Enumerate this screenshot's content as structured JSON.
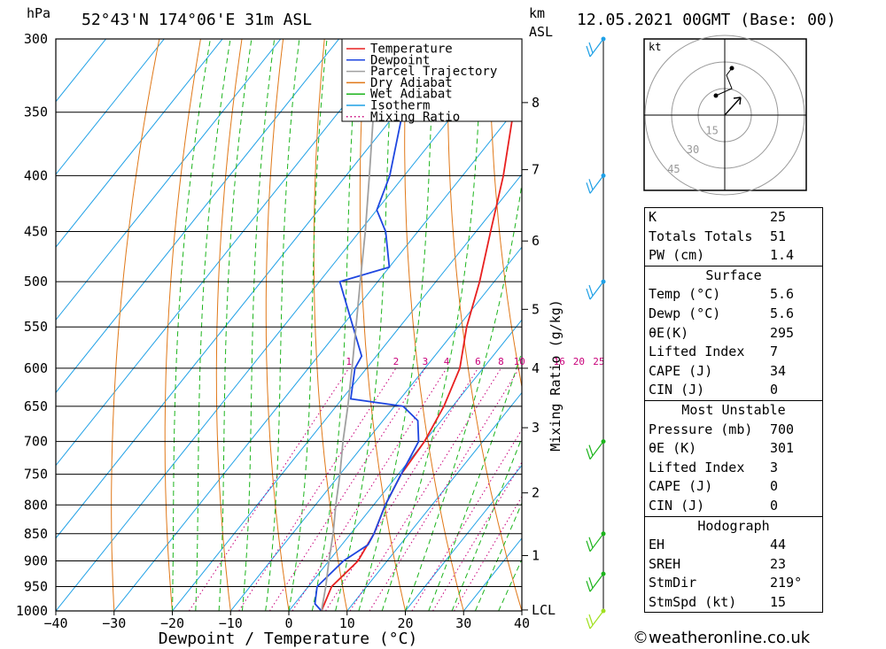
{
  "header": {
    "location": "52°43'N 174°06'E 31m ASL",
    "datetime": "12.05.2021 00GMT (Base: 00)",
    "pressure_unit": "hPa",
    "height_unit": "km",
    "height_ref": "ASL"
  },
  "chart_data": {
    "type": "line",
    "title": "",
    "xlabel": "Dewpoint / Temperature (°C)",
    "ylabel": "hPa",
    "y2label": "Mixing Ratio (g/kg)",
    "xlim": [
      -40,
      40
    ],
    "ylim": [
      1000,
      300
    ],
    "yscale": "log",
    "x_ticks": [
      "−40",
      "−30",
      "−20",
      "−10",
      "0",
      "10",
      "20",
      "30",
      "40"
    ],
    "pressure_levels": [
      300,
      350,
      400,
      450,
      500,
      550,
      600,
      650,
      700,
      750,
      800,
      850,
      900,
      950,
      1000
    ],
    "km_labels": [
      {
        "label": "8",
        "p": 343
      },
      {
        "label": "7",
        "p": 395
      },
      {
        "label": "6",
        "p": 459
      },
      {
        "label": "5",
        "p": 530
      },
      {
        "label": "4",
        "p": 600
      },
      {
        "label": "3",
        "p": 680
      },
      {
        "label": "2",
        "p": 780
      },
      {
        "label": "1",
        "p": 890
      },
      {
        "label": "LCL",
        "p": 998
      }
    ],
    "mixing_ratio_labels": [
      "1",
      "2",
      "3",
      "4",
      "6",
      "8",
      "10",
      "16",
      "20",
      "25"
    ],
    "legend": {
      "position": "top-right",
      "entries": [
        {
          "name": "Temperature",
          "color": "#e82020"
        },
        {
          "name": "Dewpoint",
          "color": "#1e46e0"
        },
        {
          "name": "Parcel Trajectory",
          "color": "#a0a0a0"
        },
        {
          "name": "Dry Adiabat",
          "color": "#e07818"
        },
        {
          "name": "Wet Adiabat",
          "color": "#1cb41c"
        },
        {
          "name": "Isotherm",
          "color": "#1ea0e6"
        },
        {
          "name": "Mixing Ratio",
          "color": "#c8007a"
        }
      ]
    },
    "series": [
      {
        "name": "Temperature",
        "color": "#e82020",
        "points": [
          [
            1000,
            5.6
          ],
          [
            950,
            4.0
          ],
          [
            900,
            5.0
          ],
          [
            850,
            4.0
          ],
          [
            800,
            2.0
          ],
          [
            750,
            0.5
          ],
          [
            700,
            0.0
          ],
          [
            650,
            -1.5
          ],
          [
            600,
            -4.0
          ],
          [
            550,
            -8.5
          ],
          [
            500,
            -12.5
          ],
          [
            450,
            -17.5
          ],
          [
            400,
            -23.0
          ],
          [
            350,
            -30.0
          ],
          [
            300,
            -37.5
          ]
        ]
      },
      {
        "name": "Dewpoint",
        "color": "#1e46e0",
        "points": [
          [
            1000,
            5.6
          ],
          [
            985,
            3.5
          ],
          [
            950,
            1.5
          ],
          [
            900,
            2.5
          ],
          [
            870,
            4.5
          ],
          [
            850,
            4.0
          ],
          [
            800,
            2.0
          ],
          [
            750,
            0.5
          ],
          [
            700,
            -1.0
          ],
          [
            670,
            -4.0
          ],
          [
            650,
            -8.5
          ],
          [
            640,
            -18.5
          ],
          [
            600,
            -22.0
          ],
          [
            585,
            -22.5
          ],
          [
            550,
            -28.0
          ],
          [
            500,
            -36.5
          ],
          [
            485,
            -30.0
          ],
          [
            450,
            -35.5
          ],
          [
            430,
            -40.0
          ],
          [
            400,
            -42.5
          ],
          [
            350,
            -49.0
          ],
          [
            300,
            -54.5
          ]
        ]
      },
      {
        "name": "Parcel Trajectory",
        "color": "#a0a0a0",
        "points": [
          [
            1000,
            5.6
          ],
          [
            950,
            3.0
          ],
          [
            900,
            0.0
          ],
          [
            850,
            -3.0
          ],
          [
            800,
            -6.5
          ],
          [
            750,
            -10.0
          ],
          [
            700,
            -14.0
          ],
          [
            650,
            -18.0
          ],
          [
            600,
            -22.5
          ],
          [
            550,
            -27.5
          ],
          [
            500,
            -33.0
          ],
          [
            450,
            -39.0
          ],
          [
            400,
            -46.0
          ],
          [
            350,
            -54.0
          ],
          [
            300,
            -63.0
          ]
        ]
      }
    ]
  },
  "hodograph": {
    "unit": "kt",
    "rings": [
      "15",
      "30",
      "45"
    ]
  },
  "indices": [
    {
      "label": "K",
      "value": "25"
    },
    {
      "label": "Totals Totals",
      "value": "51"
    },
    {
      "label": "PW (cm)",
      "value": "1.4"
    }
  ],
  "surface": {
    "title": "Surface",
    "rows": [
      {
        "label": "Temp (°C)",
        "value": "5.6"
      },
      {
        "label": "Dewp (°C)",
        "value": "5.6"
      },
      {
        "label": "θE(K)",
        "value": "295"
      },
      {
        "label": "Lifted Index",
        "value": "7"
      },
      {
        "label": "CAPE (J)",
        "value": "34"
      },
      {
        "label": "CIN (J)",
        "value": "0"
      }
    ]
  },
  "most_unstable": {
    "title": "Most Unstable",
    "rows": [
      {
        "label": "Pressure (mb)",
        "value": "700"
      },
      {
        "label": "θE (K)",
        "value": "301"
      },
      {
        "label": "Lifted Index",
        "value": "3"
      },
      {
        "label": "CAPE (J)",
        "value": "0"
      },
      {
        "label": "CIN (J)",
        "value": "0"
      }
    ]
  },
  "hodograph_stats": {
    "title": "Hodograph",
    "rows": [
      {
        "label": "EH",
        "value": "44"
      },
      {
        "label": "SREH",
        "value": "23"
      },
      {
        "label": "StmDir",
        "value": "219°"
      },
      {
        "label": "StmSpd (kt)",
        "value": "15"
      }
    ]
  },
  "credit": "©weatheronline.co.uk",
  "colors": {
    "dry_adiabat": "#e07818",
    "wet_adiabat": "#1cb41c",
    "isotherm": "#1ea0e6",
    "mixing": "#c8007a",
    "wind_upper": "#1ea0e6",
    "wind_low": "#1cb41c",
    "wind_sfc": "#a0e020"
  }
}
